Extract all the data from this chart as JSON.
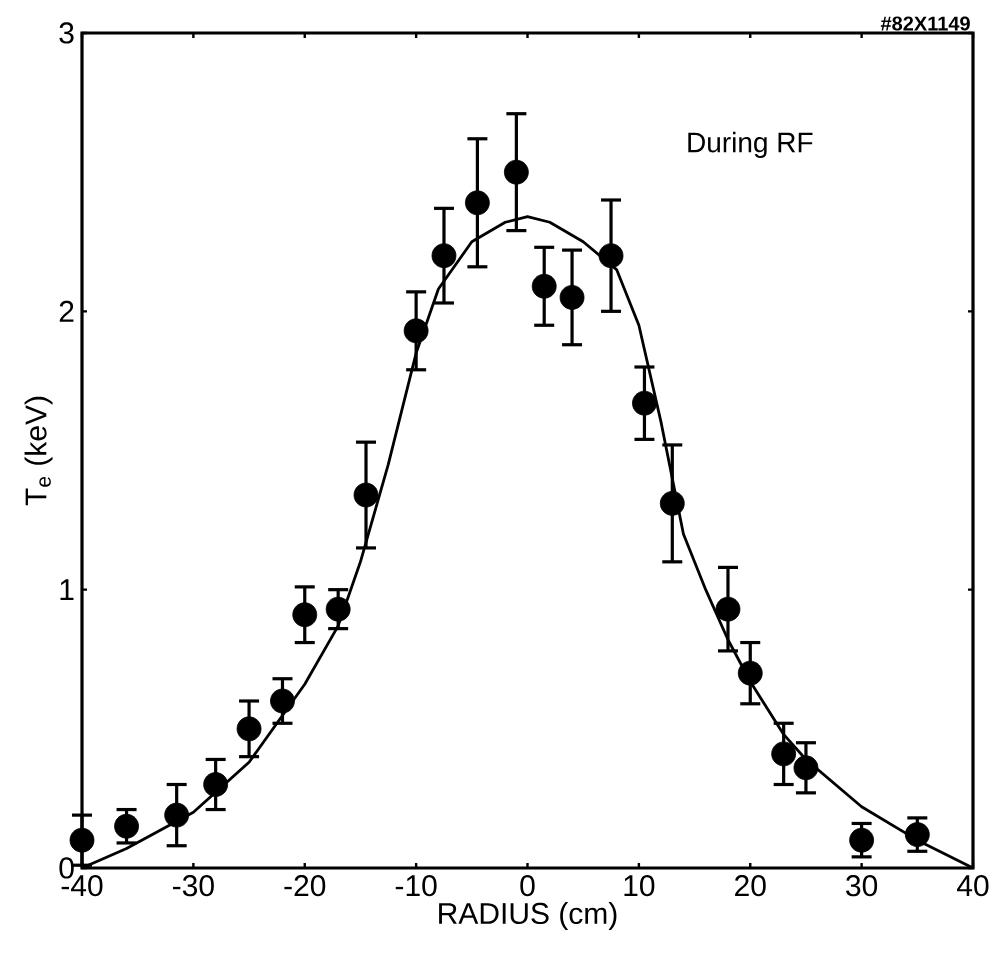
{
  "chart_data": {
    "type": "scatter",
    "xlabel": "RADIUS (cm)",
    "ylabel": "T$_{e}$ (keV)",
    "annotations": [
      "During RF",
      "#82X1149"
    ],
    "xlim": [
      -40,
      40
    ],
    "xticks": [
      -40,
      -30,
      -20,
      -10,
      0,
      10,
      20,
      30,
      40
    ],
    "ylim": [
      0,
      3
    ],
    "yticks": [
      0,
      1,
      2,
      3
    ],
    "grid": false,
    "series": [
      {
        "color": "#000000",
        "marker": "circle",
        "x": [
          -40,
          -36,
          -31.5,
          -28,
          -25,
          -22,
          -20,
          -17,
          -14.5,
          -10,
          -7.5,
          -4.5,
          -1,
          1.5,
          4,
          7.5,
          10.5,
          13,
          18,
          20,
          23,
          25,
          30,
          35
        ],
        "values": [
          0.1,
          0.15,
          0.19,
          0.3,
          0.5,
          0.6,
          0.91,
          0.93,
          1.34,
          1.93,
          2.2,
          2.39,
          2.5,
          2.09,
          2.05,
          2.2,
          1.67,
          1.31,
          0.93,
          0.7,
          0.41,
          0.36,
          0.1,
          0.12
        ],
        "errors": [
          0.09,
          0.06,
          0.11,
          0.09,
          0.1,
          0.08,
          0.1,
          0.07,
          0.19,
          0.14,
          0.17,
          0.23,
          0.21,
          0.14,
          0.17,
          0.2,
          0.13,
          0.21,
          0.15,
          0.11,
          0.11,
          0.09,
          [
            0.04,
            0.16
          ],
          0.06
        ]
      },
      {
        "type": "line",
        "color": "#000000",
        "marker": "none",
        "line_style": "solid",
        "x": [
          -40,
          -36,
          -30,
          -25,
          -20,
          -17,
          -15,
          -12.5,
          -10,
          -8,
          -5,
          -2,
          0,
          2,
          5,
          8,
          10,
          12,
          14,
          16,
          18,
          20,
          23,
          25,
          30,
          35,
          40
        ],
        "values": [
          0,
          0.07,
          0.2,
          0.38,
          0.66,
          0.87,
          1.1,
          1.45,
          1.85,
          2.08,
          2.25,
          2.32,
          2.34,
          2.32,
          2.25,
          2.15,
          1.95,
          1.6,
          1.2,
          1.0,
          0.82,
          0.67,
          0.48,
          0.39,
          0.22,
          0.1,
          0
        ]
      }
    ]
  }
}
